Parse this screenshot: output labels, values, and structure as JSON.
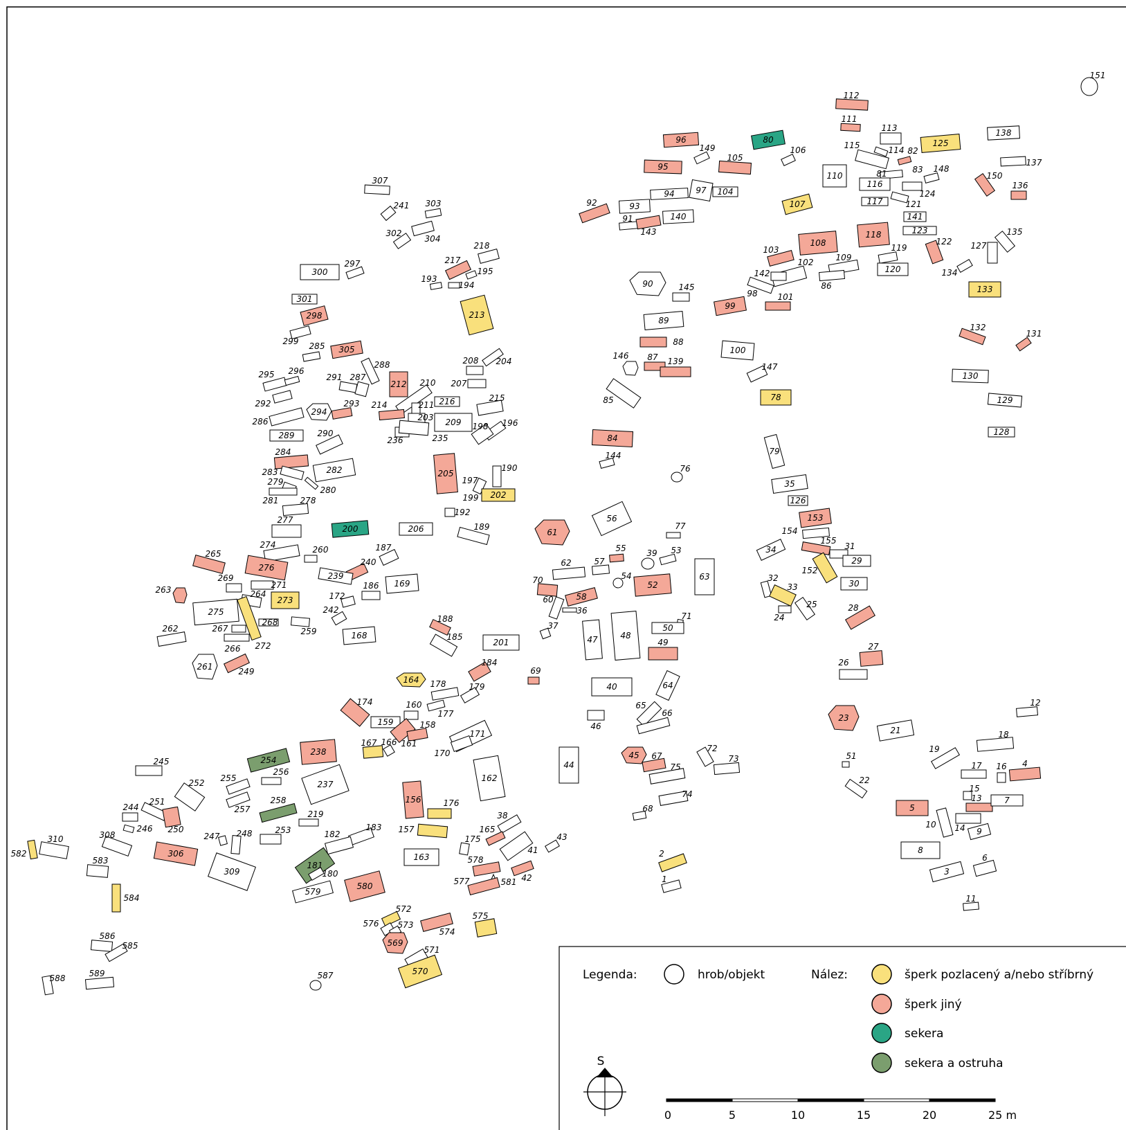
{
  "colors": {
    "none": "#ffffff",
    "gilded": "#f9e07c",
    "jewel": "#f4a898",
    "axe": "#2aa585",
    "axespur": "#7b9e6e"
  },
  "legend": {
    "heading": "Legenda:",
    "grave_label": "hrob/objekt",
    "finds_heading": "Nález:",
    "items": [
      {
        "key": "gilded",
        "label": "šperk pozlacený a/nebo stříbrný"
      },
      {
        "key": "jewel",
        "label": "šperk jiný"
      },
      {
        "key": "axe",
        "label": "sekera"
      },
      {
        "key": "axespur",
        "label": "sekera a ostruha"
      }
    ]
  },
  "north_label": "S",
  "scale": {
    "ticks": [
      "0",
      "5",
      "10",
      "15",
      "20"
    ],
    "last_tick": "25 m"
  },
  "graves": [
    [
      "151",
      "none"
    ],
    [
      "112",
      "jewel"
    ],
    [
      "111",
      "jewel"
    ],
    [
      "113",
      "none"
    ],
    [
      "96",
      "jewel"
    ],
    [
      "80",
      "axe"
    ],
    [
      "149",
      "none"
    ],
    [
      "106",
      "none"
    ],
    [
      "115",
      "none"
    ],
    [
      "114",
      "none"
    ],
    [
      "82",
      "jewel"
    ],
    [
      "125",
      "gilded"
    ],
    [
      "138",
      "none"
    ],
    [
      "137",
      "none"
    ],
    [
      "95",
      "jewel"
    ],
    [
      "105",
      "jewel"
    ],
    [
      "110",
      "none"
    ],
    [
      "81",
      "none"
    ],
    [
      "83",
      "none"
    ],
    [
      "148",
      "none"
    ],
    [
      "150",
      "jewel"
    ],
    [
      "136",
      "jewel"
    ],
    [
      "116",
      "none"
    ],
    [
      "94",
      "none"
    ],
    [
      "97",
      "none"
    ],
    [
      "104",
      "none"
    ],
    [
      "124",
      "none"
    ],
    [
      "117",
      "none"
    ],
    [
      "121",
      "none"
    ],
    [
      "93",
      "none"
    ],
    [
      "92",
      "jewel"
    ],
    [
      "107",
      "gilded"
    ],
    [
      "140",
      "none"
    ],
    [
      "91",
      "none"
    ],
    [
      "143",
      "jewel"
    ],
    [
      "141",
      "none"
    ],
    [
      "123",
      "none"
    ],
    [
      "108",
      "jewel"
    ],
    [
      "118",
      "jewel"
    ],
    [
      "135",
      "none"
    ],
    [
      "122",
      "jewel"
    ],
    [
      "127",
      "none"
    ],
    [
      "103",
      "jewel"
    ],
    [
      "119",
      "none"
    ],
    [
      "102",
      "none"
    ],
    [
      "109",
      "none"
    ],
    [
      "134",
      "none"
    ],
    [
      "120",
      "none"
    ],
    [
      "142",
      "none"
    ],
    [
      "86",
      "none"
    ],
    [
      "90",
      "none"
    ],
    [
      "98",
      "none"
    ],
    [
      "145",
      "none"
    ],
    [
      "133",
      "gilded"
    ],
    [
      "99",
      "jewel"
    ],
    [
      "101",
      "jewel"
    ],
    [
      "89",
      "none"
    ],
    [
      "132",
      "jewel"
    ],
    [
      "131",
      "jewel"
    ],
    [
      "88",
      "jewel"
    ],
    [
      "100",
      "none"
    ],
    [
      "146",
      "none"
    ],
    [
      "87",
      "jewel"
    ],
    [
      "139",
      "jewel"
    ],
    [
      "147",
      "none"
    ],
    [
      "130",
      "none"
    ],
    [
      "85",
      "none"
    ],
    [
      "78",
      "gilded"
    ],
    [
      "129",
      "none"
    ],
    [
      "84",
      "jewel"
    ],
    [
      "128",
      "none"
    ],
    [
      "144",
      "none"
    ],
    [
      "79",
      "none"
    ],
    [
      "76",
      "none"
    ],
    [
      "35",
      "none"
    ],
    [
      "126",
      "none"
    ],
    [
      "153",
      "jewel"
    ],
    [
      "56",
      "none"
    ],
    [
      "61",
      "jewel"
    ],
    [
      "154",
      "none"
    ],
    [
      "155",
      "jewel"
    ],
    [
      "77",
      "none"
    ],
    [
      "34",
      "none"
    ],
    [
      "31",
      "none"
    ],
    [
      "29",
      "none"
    ],
    [
      "55",
      "jewel"
    ],
    [
      "39",
      "none"
    ],
    [
      "53",
      "none"
    ],
    [
      "57",
      "none"
    ],
    [
      "62",
      "none"
    ],
    [
      "152",
      "gilded"
    ],
    [
      "54",
      "none"
    ],
    [
      "63",
      "none"
    ],
    [
      "52",
      "jewel"
    ],
    [
      "70",
      "jewel"
    ],
    [
      "32",
      "none"
    ],
    [
      "33",
      "gilded"
    ],
    [
      "30",
      "none"
    ],
    [
      "58",
      "jewel"
    ],
    [
      "60",
      "none"
    ],
    [
      "36",
      "none"
    ],
    [
      "25",
      "none"
    ],
    [
      "24",
      "none"
    ],
    [
      "28",
      "jewel"
    ],
    [
      "71",
      "none"
    ],
    [
      "50",
      "none"
    ],
    [
      "48",
      "none"
    ],
    [
      "47",
      "none"
    ],
    [
      "37",
      "none"
    ],
    [
      "49",
      "jewel"
    ],
    [
      "27",
      "jewel"
    ],
    [
      "26",
      "none"
    ],
    [
      "69",
      "jewel"
    ],
    [
      "64",
      "none"
    ],
    [
      "40",
      "none"
    ],
    [
      "23",
      "jewel"
    ],
    [
      "12",
      "none"
    ],
    [
      "65",
      "none"
    ],
    [
      "66",
      "none"
    ],
    [
      "46",
      "none"
    ],
    [
      "21",
      "none"
    ],
    [
      "18",
      "none"
    ],
    [
      "72",
      "none"
    ],
    [
      "45",
      "jewel"
    ],
    [
      "67",
      "jewel"
    ],
    [
      "73",
      "none"
    ],
    [
      "44",
      "none"
    ],
    [
      "75",
      "none"
    ],
    [
      "19",
      "none"
    ],
    [
      "51",
      "none"
    ],
    [
      "17",
      "none"
    ],
    [
      "16",
      "none"
    ],
    [
      "4",
      "jewel"
    ],
    [
      "22",
      "none"
    ],
    [
      "74",
      "none"
    ],
    [
      "15",
      "none"
    ],
    [
      "13",
      "jewel"
    ],
    [
      "7",
      "none"
    ],
    [
      "5",
      "jewel"
    ],
    [
      "68",
      "none"
    ],
    [
      "10",
      "none"
    ],
    [
      "14",
      "none"
    ],
    [
      "9",
      "none"
    ],
    [
      "8",
      "none"
    ],
    [
      "2",
      "gilded"
    ],
    [
      "3",
      "none"
    ],
    [
      "6",
      "none"
    ],
    [
      "1",
      "none"
    ],
    [
      "11",
      "none"
    ],
    [
      "307",
      "none"
    ],
    [
      "241",
      "none"
    ],
    [
      "303",
      "none"
    ],
    [
      "302",
      "none"
    ],
    [
      "304",
      "none"
    ],
    [
      "218",
      "none"
    ],
    [
      "217",
      "jewel"
    ],
    [
      "195",
      "none"
    ],
    [
      "300",
      "none"
    ],
    [
      "297",
      "none"
    ],
    [
      "193",
      "none"
    ],
    [
      "194",
      "none"
    ],
    [
      "301",
      "none"
    ],
    [
      "213",
      "gilded"
    ],
    [
      "298",
      "jewel"
    ],
    [
      "299",
      "none"
    ],
    [
      "285",
      "none"
    ],
    [
      "305",
      "jewel"
    ],
    [
      "208",
      "none"
    ],
    [
      "204",
      "none"
    ],
    [
      "288",
      "none"
    ],
    [
      "295",
      "none"
    ],
    [
      "296",
      "none"
    ],
    [
      "291",
      "none"
    ],
    [
      "287",
      "none"
    ],
    [
      "212",
      "jewel"
    ],
    [
      "210",
      "none"
    ],
    [
      "207",
      "none"
    ],
    [
      "216",
      "none"
    ],
    [
      "215",
      "none"
    ],
    [
      "292",
      "none"
    ],
    [
      "294",
      "none"
    ],
    [
      "293",
      "jewel"
    ],
    [
      "214",
      "jewel"
    ],
    [
      "211",
      "none"
    ],
    [
      "203",
      "none"
    ],
    [
      "286",
      "none"
    ],
    [
      "209",
      "none"
    ],
    [
      "196",
      "none"
    ],
    [
      "198",
      "none"
    ],
    [
      "289",
      "none"
    ],
    [
      "290",
      "none"
    ],
    [
      "236",
      "none"
    ],
    [
      "235",
      "none"
    ],
    [
      "284",
      "jewel"
    ],
    [
      "205",
      "jewel"
    ],
    [
      "282",
      "none"
    ],
    [
      "283",
      "none"
    ],
    [
      "190",
      "none"
    ],
    [
      "197",
      "none"
    ],
    [
      "279",
      "none"
    ],
    [
      "280",
      "none"
    ],
    [
      "202",
      "gilded"
    ],
    [
      "199",
      "none"
    ],
    [
      "281",
      "none"
    ],
    [
      "278",
      "none"
    ],
    [
      "192",
      "none"
    ],
    [
      "277",
      "none"
    ],
    [
      "200",
      "axe"
    ],
    [
      "206",
      "none"
    ],
    [
      "189",
      "none"
    ],
    [
      "274",
      "none"
    ],
    [
      "187",
      "none"
    ],
    [
      "265",
      "jewel"
    ],
    [
      "260",
      "none"
    ],
    [
      "240",
      "jewel"
    ],
    [
      "276",
      "jewel"
    ],
    [
      "239",
      "none"
    ],
    [
      "169",
      "none"
    ],
    [
      "269",
      "none"
    ],
    [
      "271",
      "none"
    ],
    [
      "186",
      "none"
    ],
    [
      "263",
      "jewel"
    ],
    [
      "264",
      "none"
    ],
    [
      "273",
      "gilded"
    ],
    [
      "172",
      "none"
    ],
    [
      "275",
      "none"
    ],
    [
      "268",
      "none"
    ],
    [
      "242",
      "none"
    ],
    [
      "188",
      "jewel"
    ],
    [
      "262",
      "none"
    ],
    [
      "267",
      "none"
    ],
    [
      "259",
      "none"
    ],
    [
      "168",
      "none"
    ],
    [
      "185",
      "none"
    ],
    [
      "201",
      "none"
    ],
    [
      "266",
      "none"
    ],
    [
      "272",
      "gilded"
    ],
    [
      "261",
      "none"
    ],
    [
      "249",
      "jewel"
    ],
    [
      "184",
      "jewel"
    ],
    [
      "164",
      "gilded"
    ],
    [
      "178",
      "none"
    ],
    [
      "179",
      "none"
    ],
    [
      "174",
      "jewel"
    ],
    [
      "160",
      "none"
    ],
    [
      "177",
      "none"
    ],
    [
      "159",
      "none"
    ],
    [
      "158",
      "jewel"
    ],
    [
      "161",
      "jewel"
    ],
    [
      "171",
      "none"
    ],
    [
      "167",
      "gilded"
    ],
    [
      "166",
      "none"
    ],
    [
      "170",
      "none"
    ],
    [
      "238",
      "jewel"
    ],
    [
      "254",
      "axespur"
    ],
    [
      "245",
      "none"
    ],
    [
      "162",
      "none"
    ],
    [
      "252",
      "none"
    ],
    [
      "255",
      "none"
    ],
    [
      "256",
      "none"
    ],
    [
      "237",
      "none"
    ],
    [
      "257",
      "none"
    ],
    [
      "251",
      "none"
    ],
    [
      "244",
      "none"
    ],
    [
      "156",
      "jewel"
    ],
    [
      "176",
      "gilded"
    ],
    [
      "258",
      "axespur"
    ],
    [
      "219",
      "none"
    ],
    [
      "38",
      "none"
    ],
    [
      "250",
      "jewel"
    ],
    [
      "246",
      "none"
    ],
    [
      "253",
      "none"
    ],
    [
      "248",
      "none"
    ],
    [
      "247",
      "none"
    ],
    [
      "183",
      "none"
    ],
    [
      "157",
      "gilded"
    ],
    [
      "165",
      "jewel"
    ],
    [
      "175",
      "none"
    ],
    [
      "43",
      "none"
    ],
    [
      "182",
      "none"
    ],
    [
      "41",
      "none"
    ],
    [
      "310",
      "none"
    ],
    [
      "308",
      "none"
    ],
    [
      "306",
      "jewel"
    ],
    [
      "163",
      "none"
    ],
    [
      "582",
      "gilded"
    ],
    [
      "583",
      "none"
    ],
    [
      "309",
      "none"
    ],
    [
      "181",
      "axespur"
    ],
    [
      "578",
      "jewel"
    ],
    [
      "180",
      "none"
    ],
    [
      "42",
      "jewel"
    ],
    [
      "581",
      "none"
    ],
    [
      "577",
      "jewel"
    ],
    [
      "580",
      "jewel"
    ],
    [
      "579",
      "none"
    ],
    [
      "584",
      "gilded"
    ],
    [
      "572",
      "gilded"
    ],
    [
      "576",
      "none"
    ],
    [
      "573",
      "none"
    ],
    [
      "574",
      "jewel"
    ],
    [
      "575",
      "gilded"
    ],
    [
      "586",
      "none"
    ],
    [
      "585",
      "none"
    ],
    [
      "569",
      "jewel"
    ],
    [
      "571",
      "none"
    ],
    [
      "570",
      "gilded"
    ],
    [
      "588",
      "none"
    ],
    [
      "589",
      "none"
    ],
    [
      "587",
      "none"
    ]
  ]
}
